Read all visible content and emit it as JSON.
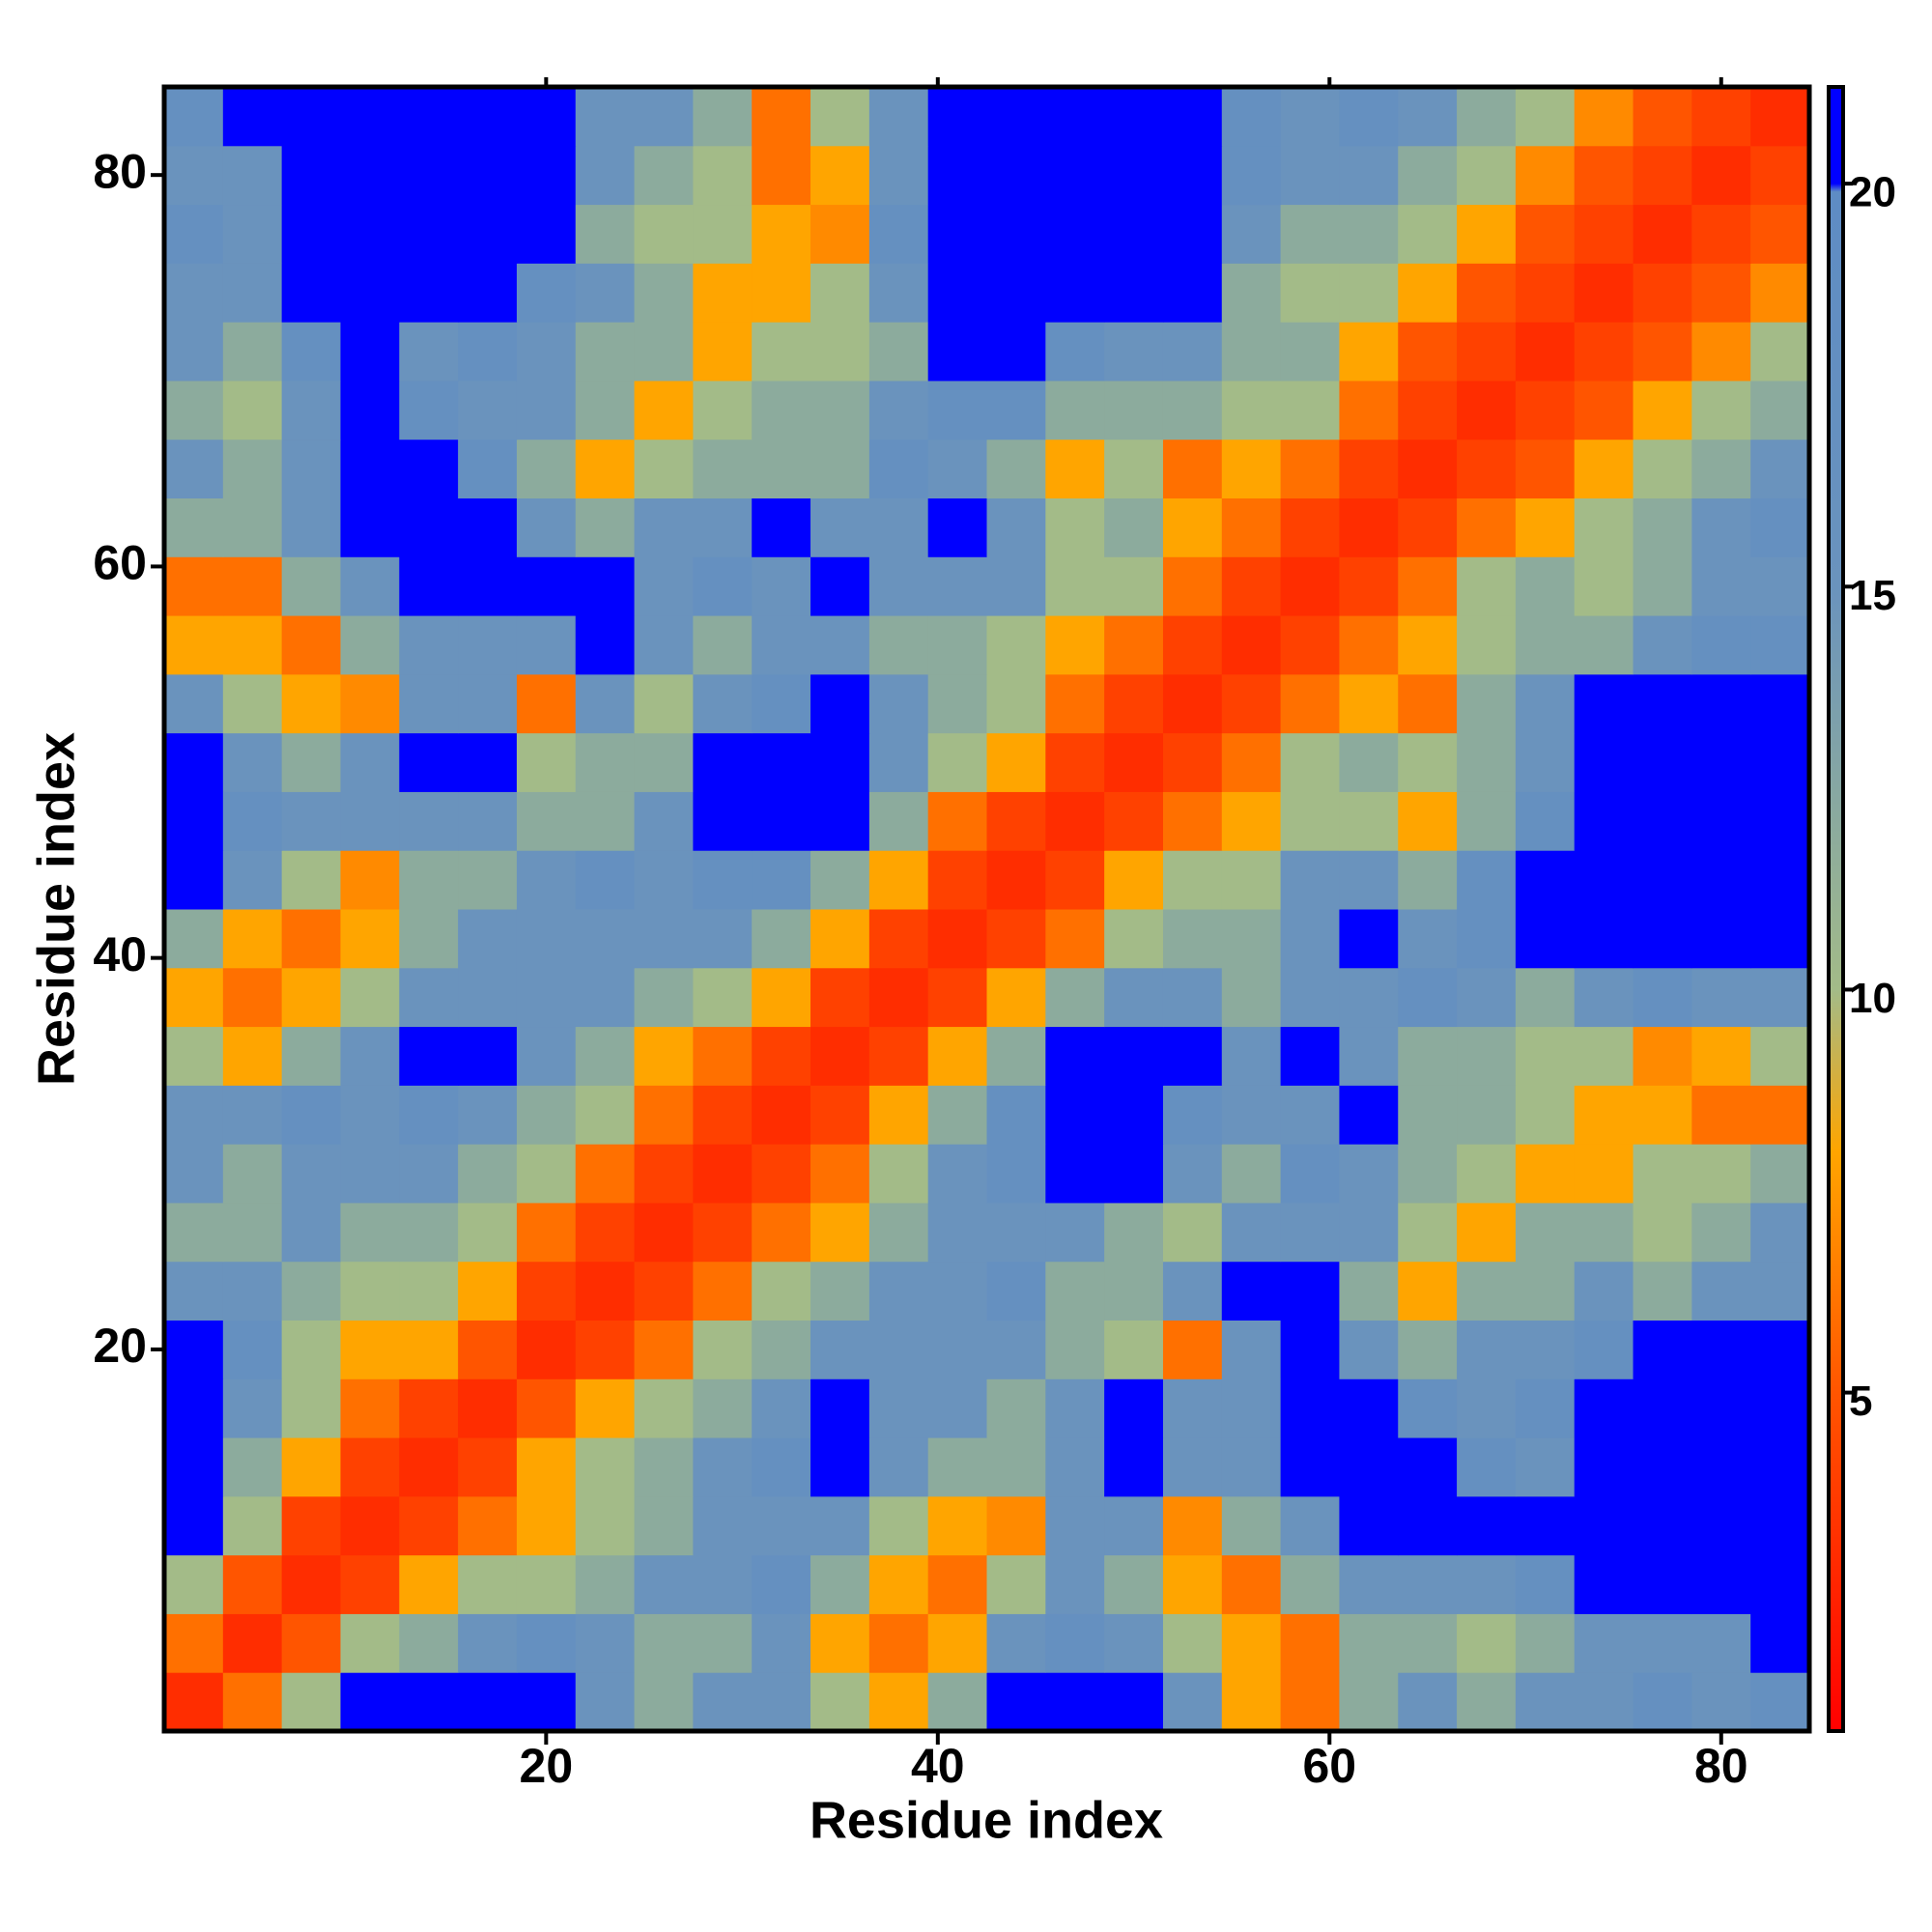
{
  "chart_data": {
    "type": "heatmap",
    "x_label": "Residue index",
    "y_label": "Residue index",
    "x": [
      2,
      5,
      8,
      11,
      14,
      17,
      20,
      23,
      26,
      29,
      32,
      35,
      38,
      41,
      44,
      47,
      50,
      53,
      56,
      59,
      62,
      65,
      68,
      71,
      74,
      77,
      80,
      83
    ],
    "y": [
      2,
      5,
      8,
      11,
      14,
      17,
      20,
      23,
      26,
      29,
      32,
      35,
      38,
      41,
      44,
      47,
      50,
      53,
      56,
      59,
      62,
      65,
      68,
      71,
      74,
      77,
      80,
      83
    ],
    "values": [
      [
        3,
        6,
        10,
        22,
        22,
        22,
        22,
        15,
        12,
        15,
        15,
        10,
        8,
        12,
        22,
        22,
        22,
        15,
        8,
        6,
        12,
        15,
        12,
        15,
        15,
        17,
        15,
        17
      ],
      [
        6,
        3,
        5,
        10,
        12,
        15,
        17,
        15,
        12,
        12,
        15,
        8,
        6,
        8,
        15,
        17,
        15,
        10,
        8,
        6,
        12,
        12,
        10,
        12,
        15,
        15,
        15,
        20
      ],
      [
        10,
        5,
        3,
        4,
        8,
        10,
        10,
        12,
        15,
        15,
        17,
        12,
        8,
        6,
        10,
        15,
        12,
        8,
        6,
        12,
        15,
        15,
        15,
        17,
        22,
        22,
        22,
        22
      ],
      [
        22,
        10,
        4,
        3,
        4,
        6,
        8,
        10,
        12,
        15,
        15,
        15,
        10,
        8,
        7,
        15,
        15,
        7,
        12,
        15,
        22,
        22,
        22,
        22,
        22,
        22,
        22,
        22
      ],
      [
        22,
        12,
        8,
        4,
        3,
        4,
        8,
        10,
        12,
        15,
        17,
        22,
        15,
        12,
        12,
        15,
        22,
        15,
        15,
        22,
        22,
        22,
        17,
        15,
        22,
        22,
        22,
        22
      ],
      [
        22,
        15,
        10,
        6,
        4,
        3,
        5,
        8,
        10,
        12,
        15,
        22,
        15,
        15,
        12,
        15,
        22,
        15,
        15,
        22,
        22,
        17,
        15,
        17,
        22,
        22,
        22,
        22
      ],
      [
        22,
        17,
        10,
        8,
        8,
        5,
        3,
        4,
        6,
        10,
        12,
        15,
        15,
        15,
        15,
        12,
        10,
        6,
        15,
        22,
        15,
        12,
        15,
        15,
        17,
        22,
        22,
        22
      ],
      [
        15,
        15,
        12,
        10,
        10,
        8,
        4,
        3,
        4,
        6,
        10,
        12,
        15,
        15,
        17,
        12,
        12,
        15,
        22,
        22,
        12,
        8,
        12,
        12,
        15,
        12,
        15,
        15
      ],
      [
        12,
        12,
        15,
        12,
        12,
        10,
        6,
        4,
        3,
        4,
        6,
        8,
        12,
        15,
        15,
        15,
        12,
        10,
        15,
        15,
        15,
        10,
        8,
        12,
        12,
        10,
        12,
        15
      ],
      [
        15,
        12,
        15,
        15,
        15,
        12,
        10,
        6,
        4,
        3,
        4,
        6,
        10,
        15,
        17,
        22,
        22,
        15,
        12,
        17,
        15,
        12,
        10,
        8,
        8,
        10,
        10,
        12
      ],
      [
        15,
        15,
        17,
        15,
        17,
        15,
        12,
        10,
        6,
        4,
        3,
        4,
        8,
        12,
        17,
        22,
        22,
        17,
        15,
        15,
        22,
        12,
        12,
        10,
        8,
        8,
        6,
        6
      ],
      [
        10,
        8,
        12,
        15,
        22,
        22,
        15,
        12,
        8,
        6,
        4,
        3,
        4,
        8,
        12,
        22,
        22,
        22,
        15,
        22,
        15,
        12,
        12,
        10,
        10,
        7,
        8,
        10
      ],
      [
        8,
        6,
        8,
        10,
        15,
        15,
        15,
        15,
        12,
        10,
        8,
        4,
        3,
        4,
        8,
        12,
        15,
        15,
        12,
        15,
        15,
        17,
        15,
        12,
        15,
        17,
        15,
        15
      ],
      [
        12,
        8,
        6,
        8,
        12,
        15,
        15,
        15,
        15,
        15,
        12,
        8,
        4,
        3,
        4,
        6,
        10,
        12,
        12,
        15,
        22,
        15,
        17,
        22,
        22,
        22,
        22,
        22
      ],
      [
        22,
        15,
        10,
        7,
        12,
        12,
        15,
        17,
        15,
        17,
        17,
        12,
        8,
        4,
        3,
        4,
        8,
        10,
        10,
        15,
        15,
        12,
        17,
        22,
        22,
        22,
        22,
        22
      ],
      [
        22,
        17,
        15,
        15,
        15,
        15,
        12,
        12,
        15,
        22,
        22,
        22,
        12,
        6,
        4,
        3,
        4,
        6,
        8,
        10,
        10,
        8,
        12,
        17,
        22,
        22,
        22,
        22
      ],
      [
        22,
        15,
        12,
        15,
        22,
        22,
        10,
        12,
        12,
        22,
        22,
        22,
        15,
        10,
        8,
        4,
        3,
        4,
        6,
        10,
        12,
        10,
        12,
        15,
        22,
        22,
        22,
        22
      ],
      [
        15,
        10,
        8,
        7,
        15,
        15,
        6,
        15,
        10,
        15,
        17,
        22,
        15,
        12,
        10,
        6,
        4,
        3,
        4,
        6,
        8,
        6,
        12,
        15,
        22,
        22,
        22,
        22
      ],
      [
        8,
        8,
        6,
        12,
        15,
        15,
        15,
        22,
        15,
        12,
        15,
        15,
        12,
        12,
        10,
        8,
        6,
        4,
        3,
        4,
        6,
        8,
        10,
        12,
        12,
        15,
        17,
        17
      ],
      [
        6,
        6,
        12,
        15,
        22,
        22,
        22,
        22,
        15,
        17,
        15,
        22,
        15,
        15,
        15,
        10,
        10,
        6,
        4,
        3,
        4,
        6,
        10,
        12,
        10,
        12,
        15,
        15
      ],
      [
        12,
        12,
        15,
        22,
        22,
        22,
        15,
        12,
        15,
        15,
        22,
        15,
        15,
        22,
        15,
        10,
        12,
        8,
        6,
        4,
        3,
        4,
        6,
        8,
        10,
        12,
        15,
        17
      ],
      [
        15,
        12,
        15,
        22,
        22,
        17,
        12,
        8,
        10,
        12,
        12,
        12,
        17,
        15,
        12,
        8,
        10,
        6,
        8,
        6,
        4,
        3,
        4,
        5,
        8,
        10,
        12,
        15
      ],
      [
        12,
        10,
        15,
        22,
        17,
        15,
        15,
        12,
        8,
        10,
        12,
        12,
        15,
        17,
        17,
        12,
        12,
        12,
        10,
        10,
        6,
        4,
        3,
        4,
        5,
        8,
        10,
        12
      ],
      [
        15,
        12,
        17,
        22,
        15,
        17,
        15,
        12,
        12,
        8,
        10,
        10,
        12,
        22,
        22,
        17,
        15,
        15,
        12,
        12,
        8,
        5,
        4,
        3,
        4,
        5,
        7,
        10
      ],
      [
        15,
        15,
        22,
        22,
        22,
        22,
        17,
        15,
        12,
        8,
        8,
        10,
        15,
        22,
        22,
        22,
        22,
        22,
        12,
        10,
        10,
        8,
        5,
        4,
        3,
        4,
        5,
        7
      ],
      [
        17,
        15,
        22,
        22,
        22,
        22,
        22,
        12,
        10,
        10,
        8,
        7,
        17,
        22,
        22,
        22,
        22,
        22,
        15,
        12,
        12,
        10,
        8,
        5,
        4,
        3,
        4,
        5
      ],
      [
        15,
        15,
        22,
        22,
        22,
        22,
        22,
        15,
        12,
        10,
        6,
        8,
        15,
        22,
        22,
        22,
        22,
        22,
        17,
        15,
        15,
        12,
        10,
        7,
        5,
        4,
        3,
        4
      ],
      [
        17,
        20,
        22,
        22,
        22,
        22,
        22,
        15,
        15,
        12,
        6,
        10,
        15,
        22,
        22,
        22,
        22,
        22,
        17,
        15,
        17,
        15,
        12,
        10,
        7,
        5,
        4,
        3
      ]
    ],
    "xlim": [
      0.5,
      84.5
    ],
    "ylim": [
      0.5,
      84.5
    ],
    "xticks": [
      20,
      40,
      60,
      80
    ],
    "yticks": [
      20,
      40,
      60,
      80
    ],
    "colorbar": {
      "lim": [
        0.8,
        21.2
      ],
      "ticks": [
        5,
        10,
        15,
        20
      ]
    },
    "colormap": [
      [
        0.8,
        "#ff0000"
      ],
      [
        5,
        "#ff5500"
      ],
      [
        8,
        "#ffa500"
      ],
      [
        10,
        "#a3bb88"
      ],
      [
        15,
        "#6a93bd"
      ],
      [
        19.9,
        "#5e8cc4"
      ],
      [
        20,
        "#0000ff"
      ],
      [
        21.2,
        "#0000ff"
      ]
    ]
  }
}
